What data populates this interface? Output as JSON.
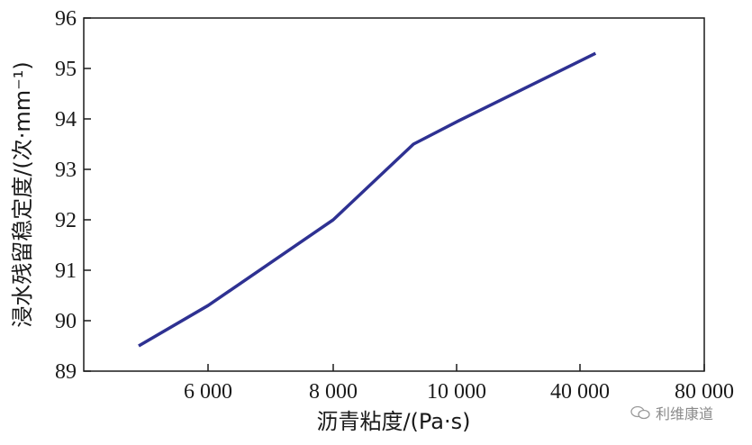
{
  "chart_data": {
    "type": "line",
    "x_categories": [
      "6 000",
      "8 000",
      "10 000",
      "40 000",
      "80 000"
    ],
    "series": [
      {
        "x": [
          5000,
          6000,
          8000,
          9300,
          10200,
          45000
        ],
        "values": [
          89.5,
          90.3,
          92.0,
          93.5,
          93.95,
          95.3
        ]
      }
    ],
    "xlabel": "沥青粘度/(Pa·s)",
    "ylabel": "浸水残留稳定度/(次·mm⁻¹)",
    "ylim": [
      89,
      96
    ],
    "y_ticks": [
      89,
      90,
      91,
      92,
      93,
      94,
      95,
      96
    ],
    "grid": false,
    "legend": "none",
    "line_color": "#2e3192"
  },
  "watermark": {
    "text": "利维康道"
  }
}
